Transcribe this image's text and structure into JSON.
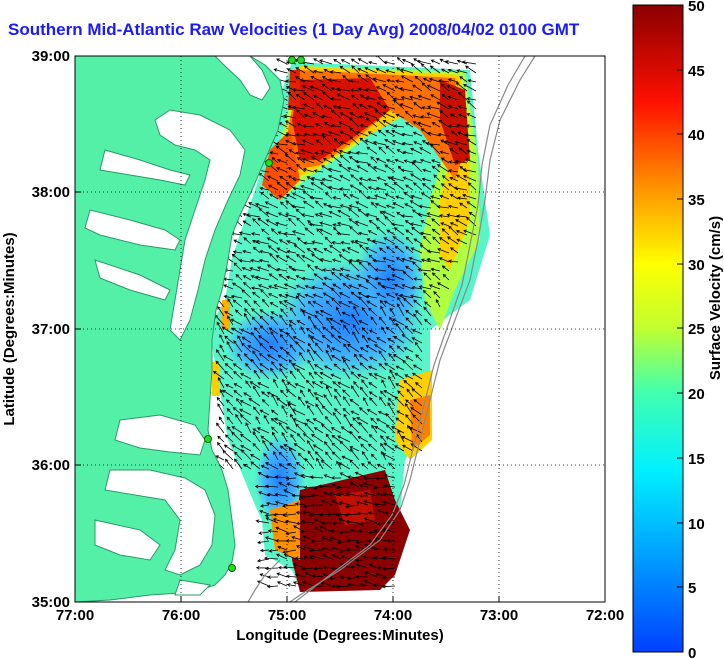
{
  "title": "Southern Mid-Atlantic Raw Velocities (1 Day Avg) 2008/04/02 0100 GMT",
  "map": {
    "xlabel": "Longitude (Degrees:Minutes)",
    "ylabel": "Latitude (Degrees:Minutes)",
    "x_ticks": [
      "77:00",
      "76:00",
      "75:00",
      "74:00",
      "73:00",
      "72:00"
    ],
    "y_ticks": [
      "39:00",
      "38:00",
      "37:00",
      "36:00",
      "35:00"
    ],
    "land_color": "#55f0a8",
    "background_color": "#ffffff",
    "grid": "dotted"
  },
  "colorbar": {
    "label": "Surface Velocity (cm/s)",
    "ticks": [
      "50",
      "45",
      "40",
      "35",
      "30",
      "25",
      "20",
      "15",
      "10",
      "5",
      "0"
    ],
    "min": 0,
    "max": 50,
    "colormap": "jet"
  }
}
